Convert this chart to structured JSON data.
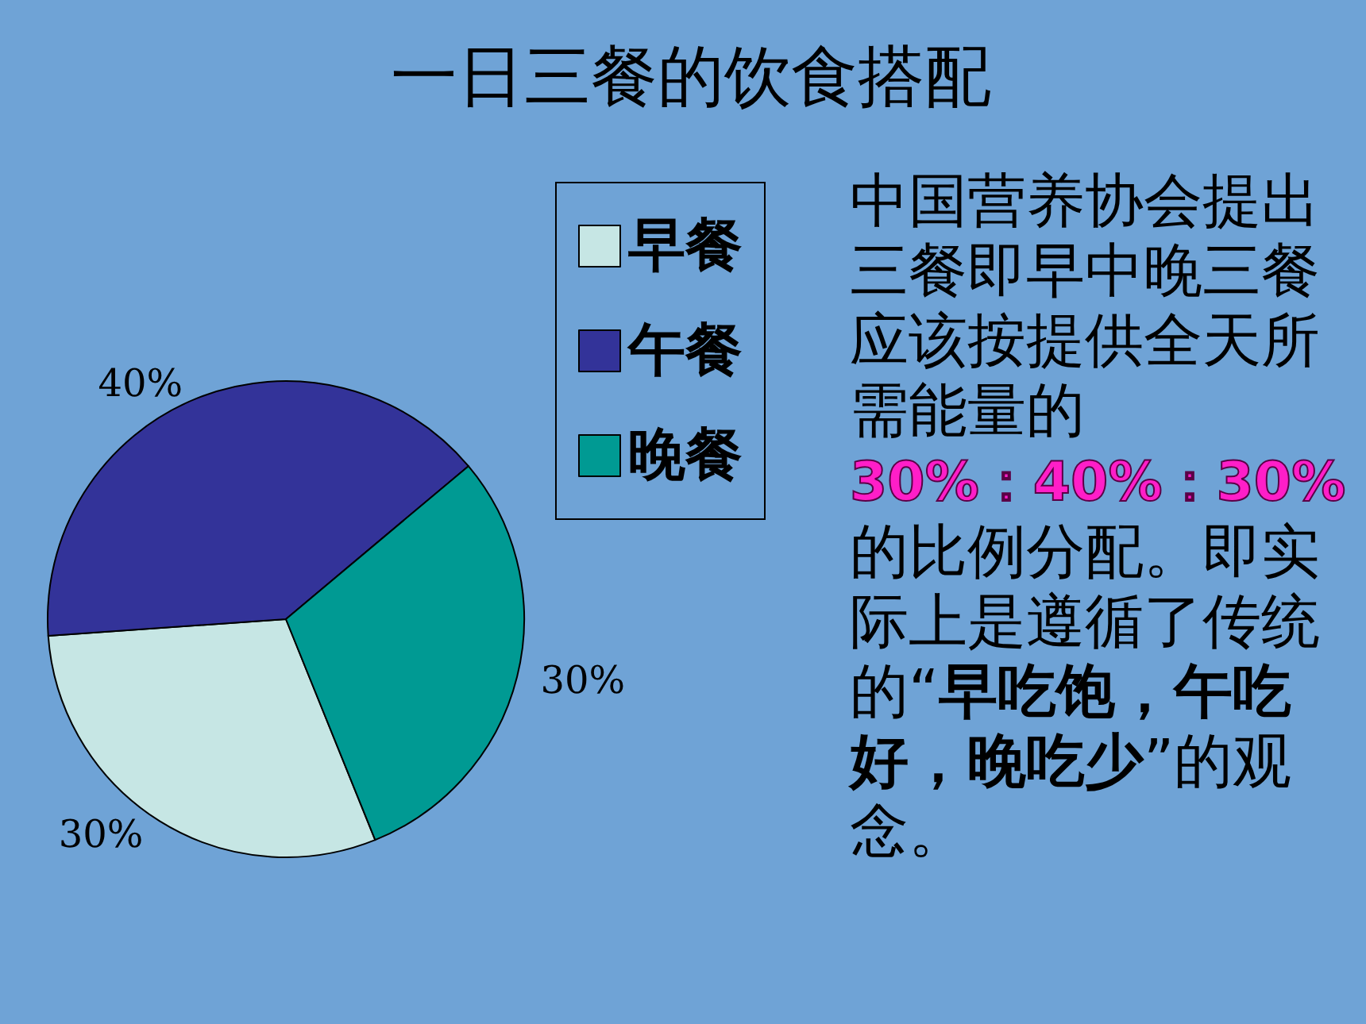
{
  "chart_data": {
    "type": "pie",
    "title": "一日三餐的饮食搭配",
    "categories": [
      "早餐",
      "午餐",
      "晚餐"
    ],
    "values": [
      30,
      40,
      30
    ],
    "colors": [
      "#c6e6e4",
      "#333399",
      "#009a93"
    ],
    "value_labels": [
      "30%",
      "40%",
      "30%"
    ],
    "legend": "top right",
    "annotations": [
      " 中国营养协会提出三餐即早中晚三餐应该按提供全天所需能量的",
      "30%：40%：30%",
      "的比例分配。即实际上是遵循了传统的“",
      "早吃饱，午吃好，晚吃少",
      "”的观念。"
    ]
  }
}
